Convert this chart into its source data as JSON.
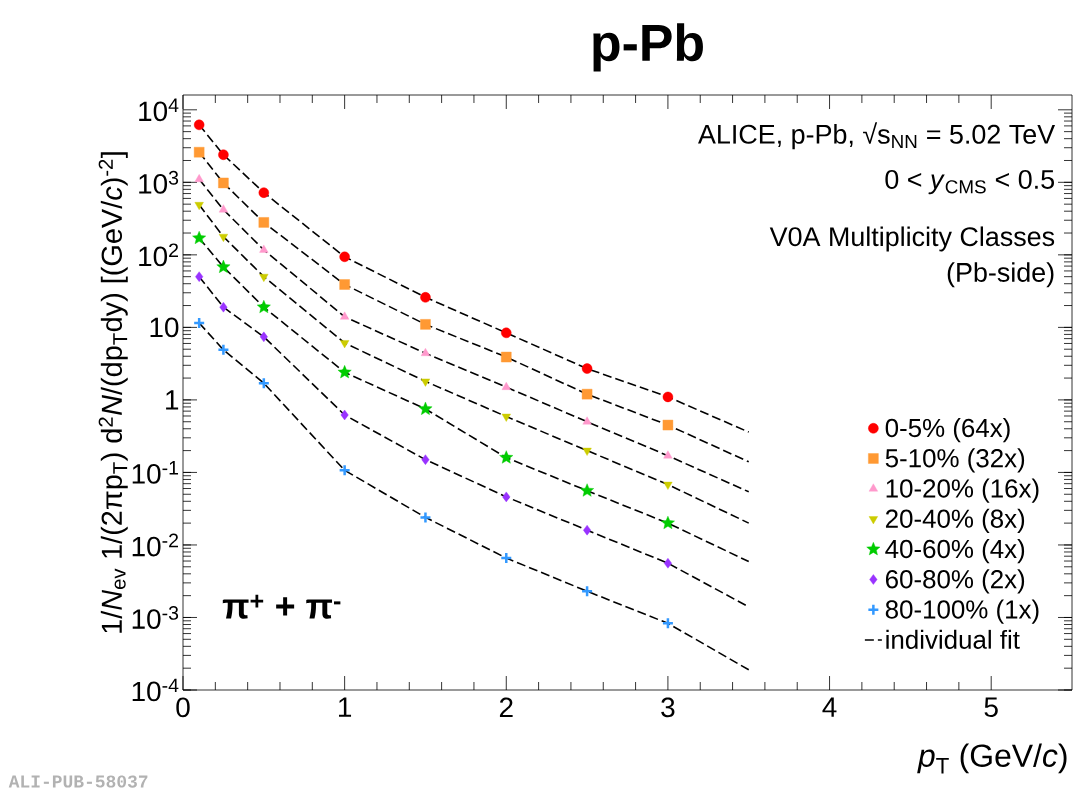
{
  "chart_data": {
    "type": "scatter",
    "title": "p-Pb",
    "xlabel": "*p*$_{T}$ (GeV/*c*)",
    "ylabel": "1/*N*$_{ev}$ 1/(2πp$_{T}$) d$^{2}$*N*/(dp$_{T}$dy) [(GeV/*c*)$^{-2}$]",
    "annotations": [
      "ALICE, p-Pb, √s$_{NN}$ = 5.02 TeV",
      "0 < *y*$_{CMS}$ < 0.5",
      "V0A Multiplicity Classes",
      "(Pb-side)",
      "π$^{+}$ + π$^{-}$",
      "ALI-PUB-58037"
    ],
    "xlim": [
      0,
      5.5
    ],
    "ylim": [
      0.0001,
      16000
    ],
    "xticks": [
      0,
      1,
      2,
      3,
      4,
      5
    ],
    "yticks": [
      {
        "value": 0.0001,
        "label": "10$^{-4}$"
      },
      {
        "value": 0.001,
        "label": "10$^{-3}$"
      },
      {
        "value": 0.01,
        "label": "10$^{-2}$"
      },
      {
        "value": 0.1,
        "label": "10$^{-1}$"
      },
      1,
      10,
      {
        "value": 100,
        "label": "10$^{2}$"
      },
      {
        "value": 1000,
        "label": "10$^{3}$"
      },
      {
        "value": 10000,
        "label": "10$^{4}$"
      }
    ],
    "log": "y",
    "legend": "right",
    "series": [
      {
        "name": "0-5% (64x)",
        "color": "#ff0000",
        "marker": "circle",
        "x": [
          0.1,
          0.25,
          0.5,
          1,
          1.5,
          2,
          2.5,
          3
        ],
        "values": [
          6200,
          2400,
          720,
          94,
          26,
          8.4,
          2.7,
          1.1
        ]
      },
      {
        "name": "5-10% (32x)",
        "color": "#ff9933",
        "marker": "square",
        "x": [
          0.1,
          0.25,
          0.5,
          1,
          1.5,
          2,
          2.5,
          3
        ],
        "values": [
          2600,
          980,
          280,
          39,
          11,
          3.9,
          1.2,
          0.45
        ]
      },
      {
        "name": "10-20% (16x)",
        "color": "#ff99cc",
        "marker": "triangle",
        "x": [
          0.1,
          0.25,
          0.5,
          1,
          1.5,
          2,
          2.5,
          3
        ],
        "values": [
          1100,
          420,
          117,
          14,
          4.4,
          1.5,
          0.5,
          0.17
        ]
      },
      {
        "name": "20-40% (8x)",
        "color": "#cccc00",
        "marker": "triangle_down",
        "x": [
          0.1,
          0.25,
          0.5,
          1,
          1.5,
          2,
          2.5,
          3
        ],
        "values": [
          490,
          178,
          50,
          6.1,
          1.8,
          0.59,
          0.2,
          0.068
        ]
      },
      {
        "name": "40-60% (4x)",
        "color": "#00cc00",
        "marker": "star",
        "x": [
          0.1,
          0.25,
          0.5,
          1,
          1.5,
          2,
          2.5,
          3
        ],
        "values": [
          170,
          68,
          19,
          2.4,
          0.75,
          0.16,
          0.056,
          0.02
        ]
      },
      {
        "name": "60-80% (2x)",
        "color": "#9933ff",
        "marker": "diamond",
        "x": [
          0.1,
          0.25,
          0.5,
          1,
          1.5,
          2,
          2.5,
          3
        ],
        "values": [
          50,
          19,
          7.4,
          0.62,
          0.15,
          0.046,
          0.016,
          0.0056
        ]
      },
      {
        "name": "80-100% (1x)",
        "color": "#3399ff",
        "marker": "cross",
        "x": [
          0.1,
          0.25,
          0.5,
          1,
          1.5,
          2,
          2.5,
          3
        ],
        "values": [
          11.5,
          4.9,
          1.7,
          0.107,
          0.024,
          0.0066,
          0.0023,
          0.00083
        ]
      },
      {
        "name": "individual fit",
        "type": "line",
        "color": "#000000",
        "line_style": "dashed",
        "x": [
          0.1,
          0.25,
          0.5,
          1,
          1.5,
          2,
          2.5,
          3,
          3.5
        ],
        "values": [
          6200,
          2400,
          720,
          94,
          26,
          8.4,
          2.7,
          1.1,
          0.36
        ]
      },
      {
        "type": "line",
        "color": "#000000",
        "line_style": "dashed",
        "x": [
          0.1,
          0.25,
          0.5,
          1,
          1.5,
          2,
          2.5,
          3,
          3.5
        ],
        "values": [
          2600,
          980,
          280,
          39,
          11,
          3.9,
          1.2,
          0.45,
          0.14
        ]
      },
      {
        "type": "line",
        "color": "#000000",
        "line_style": "dashed",
        "x": [
          0.1,
          0.25,
          0.5,
          1,
          1.5,
          2,
          2.5,
          3,
          3.5
        ],
        "values": [
          1100,
          420,
          117,
          14,
          4.4,
          1.5,
          0.5,
          0.17,
          0.054
        ]
      },
      {
        "type": "line",
        "color": "#000000",
        "line_style": "dashed",
        "x": [
          0.1,
          0.25,
          0.5,
          1,
          1.5,
          2,
          2.5,
          3,
          3.5
        ],
        "values": [
          490,
          178,
          50,
          6.1,
          1.8,
          0.59,
          0.2,
          0.068,
          0.02
        ]
      },
      {
        "type": "line",
        "color": "#000000",
        "line_style": "dashed",
        "x": [
          0.1,
          0.25,
          0.5,
          1,
          1.5,
          2,
          2.5,
          3,
          3.5
        ],
        "values": [
          170,
          68,
          19,
          2.4,
          0.75,
          0.16,
          0.056,
          0.02,
          0.0059
        ]
      },
      {
        "type": "line",
        "color": "#000000",
        "line_style": "dashed",
        "x": [
          0.1,
          0.25,
          0.5,
          1,
          1.5,
          2,
          2.5,
          3,
          3.5
        ],
        "values": [
          50,
          19,
          7.4,
          0.62,
          0.15,
          0.046,
          0.016,
          0.0056,
          0.0014
        ]
      },
      {
        "type": "line",
        "color": "#000000",
        "line_style": "dashed",
        "x": [
          0.1,
          0.25,
          0.5,
          1,
          1.5,
          2,
          2.5,
          3,
          3.5
        ],
        "values": [
          11.5,
          4.9,
          1.7,
          0.107,
          0.024,
          0.0066,
          0.0023,
          0.00083,
          0.00019
        ]
      }
    ]
  }
}
